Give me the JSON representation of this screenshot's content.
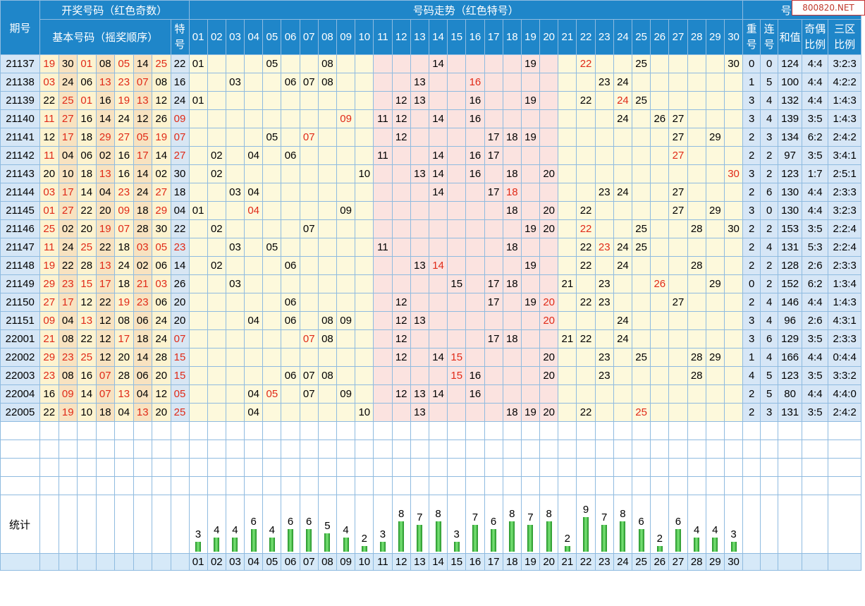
{
  "header": {
    "issue": "期号",
    "draw_group": "开奖号码（红色奇数）",
    "basic_numbers": "基本号码（摇奖顺序）",
    "special_chars": [
      "特",
      "号"
    ],
    "trend_group": "号码走势（红色特号）",
    "analysis_group": "号码分析",
    "repeat_chars": [
      "重",
      "号"
    ],
    "consecutive_chars": [
      "连",
      "号"
    ],
    "sum": "和值",
    "odd_even": [
      "奇偶",
      "比例"
    ],
    "three_zone": [
      "三区",
      "比例"
    ]
  },
  "columns": [
    "01",
    "02",
    "03",
    "04",
    "05",
    "06",
    "07",
    "08",
    "09",
    "10",
    "11",
    "12",
    "13",
    "14",
    "15",
    "16",
    "17",
    "18",
    "19",
    "20",
    "21",
    "22",
    "23",
    "24",
    "25",
    "26",
    "27",
    "28",
    "29",
    "30"
  ],
  "watermark": "800820.NET",
  "stat_label": "统计",
  "chart_data": {
    "type": "bar",
    "categories": [
      "01",
      "02",
      "03",
      "04",
      "05",
      "06",
      "07",
      "08",
      "09",
      "10",
      "11",
      "12",
      "13",
      "14",
      "15",
      "16",
      "17",
      "18",
      "19",
      "20",
      "21",
      "22",
      "23",
      "24",
      "25",
      "26",
      "27",
      "28",
      "29",
      "30"
    ],
    "values": [
      3,
      4,
      4,
      6,
      4,
      6,
      6,
      5,
      4,
      2,
      3,
      8,
      7,
      8,
      3,
      7,
      6,
      8,
      7,
      8,
      2,
      9,
      7,
      8,
      6,
      2,
      6,
      4,
      4,
      3
    ],
    "xlabel": "",
    "ylabel": "",
    "colors": {
      "bar": "#2e9d2e",
      "header": "#1f86c9",
      "odd": "#e02a18"
    }
  },
  "rows": [
    {
      "issue": "21137",
      "basic": [
        "19",
        "30",
        "01",
        "08",
        "05",
        "14",
        "25"
      ],
      "special": "22",
      "trend": [
        "01",
        "05",
        "08",
        "14",
        "19",
        "22",
        "25",
        "30"
      ],
      "repeat": "0",
      "consecutive": "0",
      "sum": "124",
      "odd_even": "4:4",
      "three_zone": "3:2:3"
    },
    {
      "issue": "21138",
      "basic": [
        "03",
        "24",
        "06",
        "13",
        "23",
        "07",
        "08"
      ],
      "special": "16",
      "trend": [
        "03",
        "06",
        "07",
        "08",
        "13",
        "16",
        "23",
        "24"
      ],
      "repeat": "1",
      "consecutive": "5",
      "sum": "100",
      "odd_even": "4:4",
      "three_zone": "4:2:2"
    },
    {
      "issue": "21139",
      "basic": [
        "22",
        "25",
        "01",
        "16",
        "19",
        "13",
        "12"
      ],
      "special": "24",
      "trend": [
        "01",
        "12",
        "13",
        "16",
        "19",
        "22",
        "24",
        "25"
      ],
      "repeat": "3",
      "consecutive": "4",
      "sum": "132",
      "odd_even": "4:4",
      "three_zone": "1:4:3"
    },
    {
      "issue": "21140",
      "basic": [
        "11",
        "27",
        "16",
        "14",
        "24",
        "12",
        "26"
      ],
      "special": "09",
      "trend": [
        "09",
        "11",
        "12",
        "14",
        "16",
        "24",
        "26",
        "27"
      ],
      "repeat": "3",
      "consecutive": "4",
      "sum": "139",
      "odd_even": "3:5",
      "three_zone": "1:4:3"
    },
    {
      "issue": "21141",
      "basic": [
        "12",
        "17",
        "18",
        "29",
        "27",
        "05",
        "19"
      ],
      "special": "07",
      "trend": [
        "05",
        "07",
        "12",
        "17",
        "18",
        "19",
        "27",
        "29"
      ],
      "repeat": "2",
      "consecutive": "3",
      "sum": "134",
      "odd_even": "6:2",
      "three_zone": "2:4:2"
    },
    {
      "issue": "21142",
      "basic": [
        "11",
        "04",
        "06",
        "02",
        "16",
        "17",
        "14"
      ],
      "special": "27",
      "trend": [
        "02",
        "04",
        "06",
        "11",
        "14",
        "16",
        "17",
        "27"
      ],
      "repeat": "2",
      "consecutive": "2",
      "sum": "97",
      "odd_even": "3:5",
      "three_zone": "3:4:1"
    },
    {
      "issue": "21143",
      "basic": [
        "20",
        "10",
        "18",
        "13",
        "16",
        "14",
        "02"
      ],
      "special": "30",
      "trend": [
        "02",
        "10",
        "13",
        "14",
        "16",
        "18",
        "20",
        "30"
      ],
      "repeat": "3",
      "consecutive": "2",
      "sum": "123",
      "odd_even": "1:7",
      "three_zone": "2:5:1"
    },
    {
      "issue": "21144",
      "basic": [
        "03",
        "17",
        "14",
        "04",
        "23",
        "24",
        "27"
      ],
      "special": "18",
      "trend": [
        "03",
        "04",
        "14",
        "17",
        "18",
        "23",
        "24",
        "27"
      ],
      "repeat": "2",
      "consecutive": "6",
      "sum": "130",
      "odd_even": "4:4",
      "three_zone": "2:3:3"
    },
    {
      "issue": "21145",
      "basic": [
        "01",
        "27",
        "22",
        "20",
        "09",
        "18",
        "29"
      ],
      "special": "04",
      "trend": [
        "01",
        "04",
        "09",
        "18",
        "20",
        "22",
        "27",
        "29"
      ],
      "repeat": "3",
      "consecutive": "0",
      "sum": "130",
      "odd_even": "4:4",
      "three_zone": "3:2:3"
    },
    {
      "issue": "21146",
      "basic": [
        "25",
        "02",
        "20",
        "19",
        "07",
        "28",
        "30"
      ],
      "special": "22",
      "trend": [
        "02",
        "07",
        "19",
        "20",
        "22",
        "25",
        "28",
        "30"
      ],
      "repeat": "2",
      "consecutive": "2",
      "sum": "153",
      "odd_even": "3:5",
      "three_zone": "2:2:4"
    },
    {
      "issue": "21147",
      "basic": [
        "11",
        "24",
        "25",
        "22",
        "18",
        "03",
        "05"
      ],
      "special": "23",
      "trend": [
        "03",
        "05",
        "11",
        "18",
        "22",
        "23",
        "24",
        "25"
      ],
      "repeat": "2",
      "consecutive": "4",
      "sum": "131",
      "odd_even": "5:3",
      "three_zone": "2:2:4"
    },
    {
      "issue": "21148",
      "basic": [
        "19",
        "22",
        "28",
        "13",
        "24",
        "02",
        "06"
      ],
      "special": "14",
      "trend": [
        "02",
        "06",
        "13",
        "14",
        "19",
        "22",
        "24",
        "28"
      ],
      "repeat": "2",
      "consecutive": "2",
      "sum": "128",
      "odd_even": "2:6",
      "three_zone": "2:3:3"
    },
    {
      "issue": "21149",
      "basic": [
        "29",
        "23",
        "15",
        "17",
        "18",
        "21",
        "03"
      ],
      "special": "26",
      "trend": [
        "03",
        "15",
        "17",
        "18",
        "21",
        "23",
        "26",
        "29"
      ],
      "repeat": "0",
      "consecutive": "2",
      "sum": "152",
      "odd_even": "6:2",
      "three_zone": "1:3:4"
    },
    {
      "issue": "21150",
      "basic": [
        "27",
        "17",
        "12",
        "22",
        "19",
        "23",
        "06"
      ],
      "special": "20",
      "trend": [
        "06",
        "12",
        "17",
        "19",
        "20",
        "22",
        "23",
        "27"
      ],
      "repeat": "2",
      "consecutive": "4",
      "sum": "146",
      "odd_even": "4:4",
      "three_zone": "1:4:3"
    },
    {
      "issue": "21151",
      "basic": [
        "09",
        "04",
        "13",
        "12",
        "08",
        "06",
        "24"
      ],
      "special": "20",
      "trend": [
        "04",
        "06",
        "08",
        "09",
        "12",
        "13",
        "20",
        "24"
      ],
      "repeat": "3",
      "consecutive": "4",
      "sum": "96",
      "odd_even": "2:6",
      "three_zone": "4:3:1"
    },
    {
      "issue": "22001",
      "basic": [
        "21",
        "08",
        "22",
        "12",
        "17",
        "18",
        "24"
      ],
      "special": "07",
      "trend": [
        "07",
        "08",
        "12",
        "17",
        "18",
        "21",
        "22",
        "24"
      ],
      "repeat": "3",
      "consecutive": "6",
      "sum": "129",
      "odd_even": "3:5",
      "three_zone": "2:3:3"
    },
    {
      "issue": "22002",
      "basic": [
        "29",
        "23",
        "25",
        "12",
        "20",
        "14",
        "28"
      ],
      "special": "15",
      "trend": [
        "12",
        "14",
        "15",
        "20",
        "23",
        "25",
        "28",
        "29"
      ],
      "repeat": "1",
      "consecutive": "4",
      "sum": "166",
      "odd_even": "4:4",
      "three_zone": "0:4:4"
    },
    {
      "issue": "22003",
      "basic": [
        "23",
        "08",
        "16",
        "07",
        "28",
        "06",
        "20"
      ],
      "special": "15",
      "trend": [
        "06",
        "07",
        "08",
        "15",
        "16",
        "20",
        "23",
        "28"
      ],
      "repeat": "4",
      "consecutive": "5",
      "sum": "123",
      "odd_even": "3:5",
      "three_zone": "3:3:2"
    },
    {
      "issue": "22004",
      "basic": [
        "16",
        "09",
        "14",
        "07",
        "13",
        "04",
        "12"
      ],
      "special": "05",
      "trend": [
        "04",
        "05",
        "07",
        "09",
        "12",
        "13",
        "14",
        "16"
      ],
      "repeat": "2",
      "consecutive": "5",
      "sum": "80",
      "odd_even": "4:4",
      "three_zone": "4:4:0"
    },
    {
      "issue": "22005",
      "basic": [
        "22",
        "19",
        "10",
        "18",
        "04",
        "13",
        "20"
      ],
      "special": "25",
      "trend": [
        "04",
        "10",
        "13",
        "18",
        "19",
        "20",
        "22",
        "25"
      ],
      "repeat": "2",
      "consecutive": "3",
      "sum": "131",
      "odd_even": "3:5",
      "three_zone": "2:4:2"
    }
  ]
}
